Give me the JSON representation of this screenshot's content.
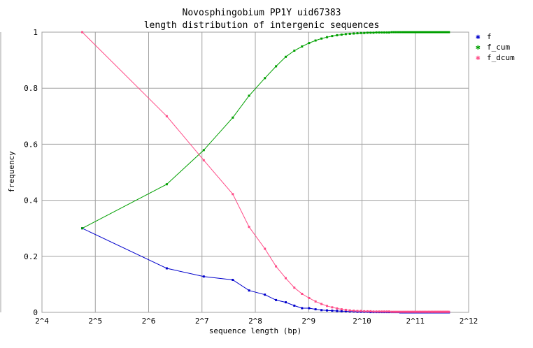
{
  "chart_data": {
    "type": "line",
    "title": "Novosphingobium PP1Y uid67383",
    "subtitle": "length distribution of intergenic sequences",
    "xlabel": "sequence length (bp)",
    "ylabel": "frequency",
    "x_scale": "log2",
    "xlim": [
      16,
      4096
    ],
    "ylim": [
      0,
      1
    ],
    "grid": true,
    "legend_position": "right",
    "x_ticks": [
      {
        "value": 16,
        "label": "2^4"
      },
      {
        "value": 32,
        "label": "2^5"
      },
      {
        "value": 64,
        "label": "2^6"
      },
      {
        "value": 128,
        "label": "2^7"
      },
      {
        "value": 256,
        "label": "2^8"
      },
      {
        "value": 512,
        "label": "2^9"
      },
      {
        "value": 1024,
        "label": "2^10"
      },
      {
        "value": 2048,
        "label": "2^11"
      },
      {
        "value": 4096,
        "label": "2^12"
      }
    ],
    "y_ticks": [
      {
        "value": 0,
        "label": "0"
      },
      {
        "value": 0.2,
        "label": "0.2"
      },
      {
        "value": 0.4,
        "label": "0.4"
      },
      {
        "value": 0.6,
        "label": "0.6"
      },
      {
        "value": 0.8,
        "label": "0.8"
      },
      {
        "value": 1,
        "label": "1"
      }
    ],
    "x": [
      27,
      81,
      131,
      191,
      236,
      290,
      335,
      380,
      425,
      470,
      515,
      560,
      605,
      650,
      695,
      740,
      785,
      830,
      875,
      920,
      965,
      1010,
      1055,
      1100,
      1145,
      1190,
      1235,
      1280,
      1325,
      1370,
      1415,
      1460,
      1505,
      1550,
      1595,
      1640,
      1685,
      1730,
      1775,
      1820,
      1865,
      1910,
      1955,
      2000,
      2045,
      2090,
      2135,
      2180,
      2225,
      2270,
      2315,
      2360,
      2405,
      2450,
      2495,
      2540,
      2585,
      2630,
      2675,
      2720,
      2765,
      2810,
      2855,
      2900,
      2945,
      2990,
      3035,
      3080,
      3125,
      3170
    ],
    "series": [
      {
        "name": "f",
        "color": "#0000cc",
        "values": [
          0.3,
          0.157,
          0.128,
          0.116,
          0.078,
          0.063,
          0.044,
          0.036,
          0.024,
          0.015,
          0.015,
          0.011,
          0.008,
          0.007,
          0.006,
          0.005,
          0.004,
          0.004,
          0.003,
          0.003,
          0.002,
          0.002,
          0.002,
          0.002,
          0.001,
          0.001,
          0.001,
          0.001,
          0.001,
          0.001,
          0.001,
          0.001,
          0.001,
          0.001,
          0.001,
          0.001,
          0.0,
          0.0,
          0.0,
          0.0,
          0.0,
          0.0,
          0.0,
          0.0,
          0.0,
          0.0,
          0.0,
          0.0,
          0.0,
          0.0,
          0.0,
          0.0,
          0.0,
          0.0,
          0.0,
          0.0,
          0.0,
          0.0,
          0.0,
          0.0,
          0.0,
          0.0,
          0.0,
          0.0,
          0.0,
          0.0,
          0.0,
          0.0,
          0.0,
          0.0
        ]
      },
      {
        "name": "f_cum",
        "color": "#00a000",
        "values": [
          0.3,
          0.457,
          0.579,
          0.695,
          0.773,
          0.836,
          0.878,
          0.912,
          0.934,
          0.949,
          0.961,
          0.97,
          0.977,
          0.982,
          0.986,
          0.989,
          0.991,
          0.993,
          0.994,
          0.995,
          0.996,
          0.997,
          0.997,
          0.998,
          0.998,
          0.998,
          0.999,
          0.999,
          0.999,
          0.999,
          0.999,
          0.999,
          1.0,
          1.0,
          1.0,
          1.0,
          1.0,
          1.0,
          1.0,
          1.0,
          1.0,
          1.0,
          1.0,
          1.0,
          1.0,
          1.0,
          1.0,
          1.0,
          1.0,
          1.0,
          1.0,
          1.0,
          1.0,
          1.0,
          1.0,
          1.0,
          1.0,
          1.0,
          1.0,
          1.0,
          1.0,
          1.0,
          1.0,
          1.0,
          1.0,
          1.0,
          1.0,
          1.0,
          1.0,
          1.0
        ]
      },
      {
        "name": "f_dcum",
        "color": "#ff4d88",
        "values": [
          1.0,
          0.7,
          0.543,
          0.422,
          0.305,
          0.227,
          0.164,
          0.122,
          0.088,
          0.066,
          0.051,
          0.039,
          0.03,
          0.023,
          0.018,
          0.014,
          0.011,
          0.009,
          0.007,
          0.006,
          0.005,
          0.005,
          0.004,
          0.004,
          0.004,
          0.003,
          0.003,
          0.003,
          0.003,
          0.003,
          0.003,
          0.003,
          0.002,
          0.002,
          0.002,
          0.002,
          0.002,
          0.002,
          0.002,
          0.002,
          0.002,
          0.002,
          0.002,
          0.002,
          0.002,
          0.002,
          0.002,
          0.002,
          0.002,
          0.002,
          0.002,
          0.002,
          0.002,
          0.002,
          0.002,
          0.002,
          0.002,
          0.002,
          0.002,
          0.002,
          0.002,
          0.002,
          0.002,
          0.002,
          0.002,
          0.002,
          0.002,
          0.002,
          0.002,
          0.002
        ]
      }
    ]
  }
}
